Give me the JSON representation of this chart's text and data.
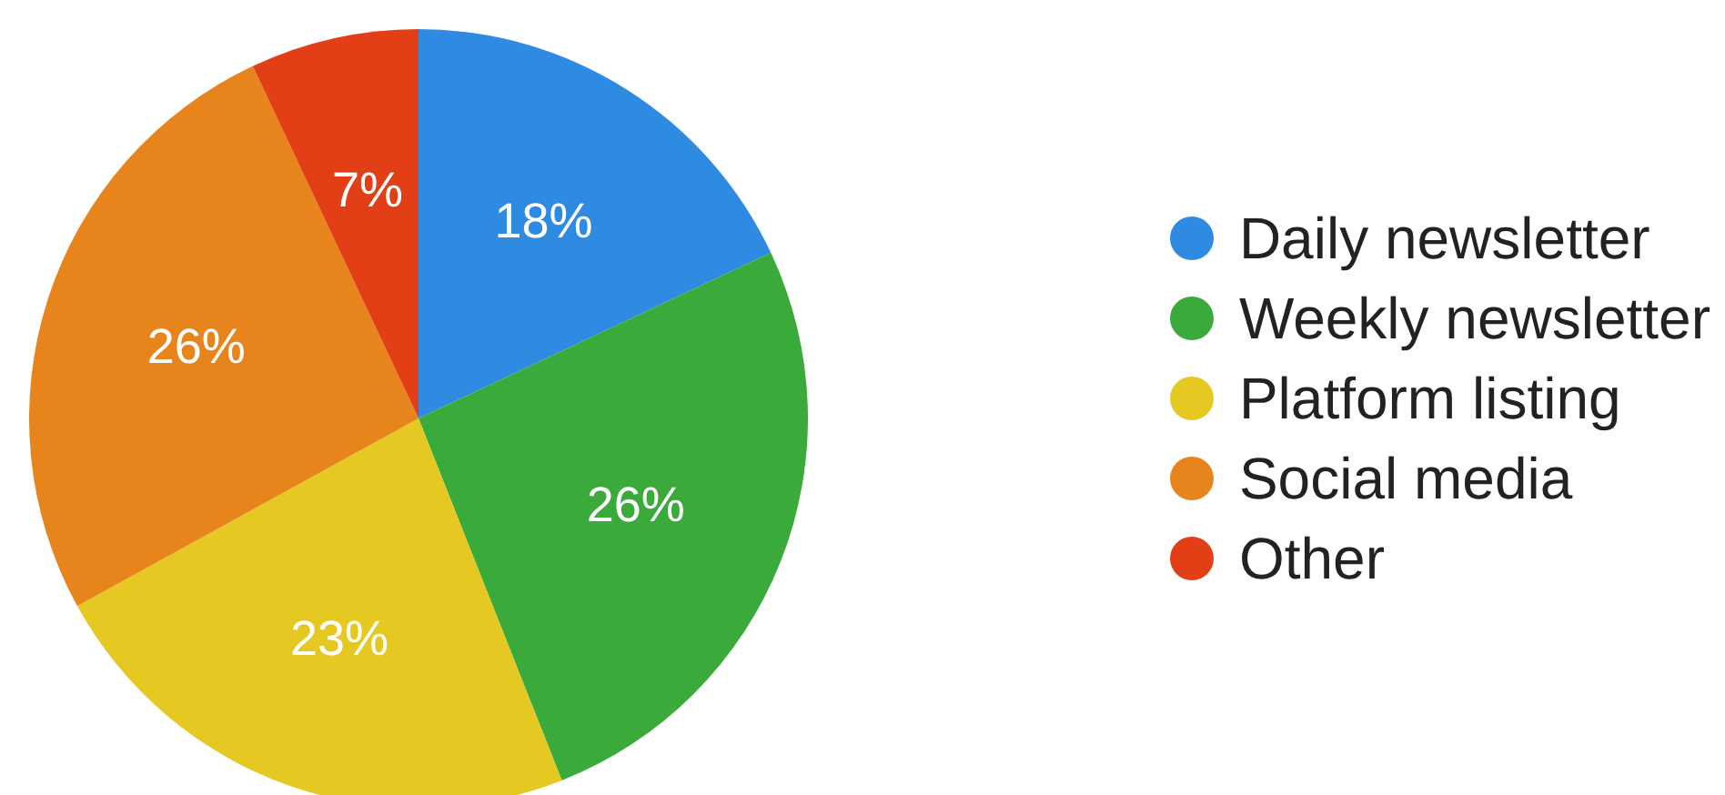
{
  "chart_data": {
    "type": "pie",
    "categories": [
      "Daily newsletter",
      "Weekly newsletter",
      "Platform listing",
      "Social media",
      "Other"
    ],
    "values": [
      18,
      26,
      23,
      26,
      7
    ],
    "colors": [
      "#2f8be2",
      "#3aaa3a",
      "#e6c823",
      "#e8841c",
      "#e23f17"
    ],
    "value_labels": [
      "18%",
      "26%",
      "23%",
      "26%",
      "7%"
    ],
    "legend": "right"
  }
}
